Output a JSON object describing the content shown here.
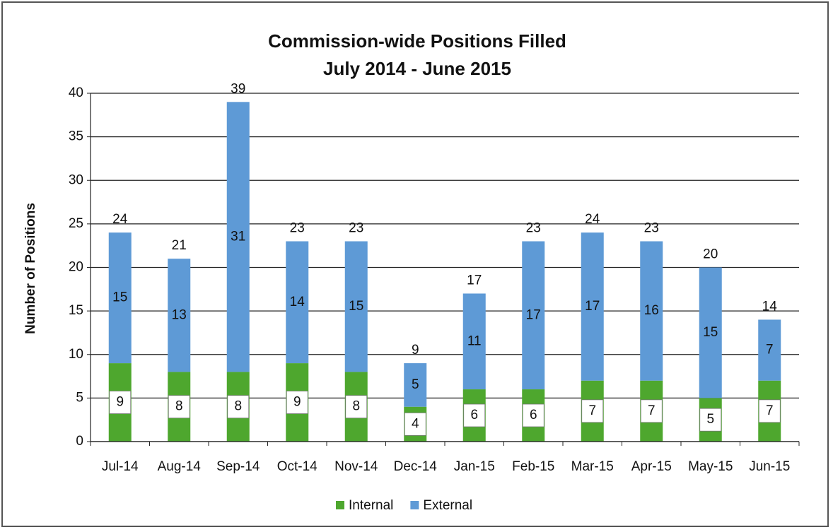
{
  "chart_data": {
    "type": "stacked_bar",
    "title": "Commission-wide Positions Filled",
    "subtitle": "July 2014 - June 2015",
    "y_label": "Number of Positions",
    "categories": [
      "Jul-14",
      "Aug-14",
      "Sep-14",
      "Oct-14",
      "Nov-14",
      "Dec-14",
      "Jan-15",
      "Feb-15",
      "Mar-15",
      "Apr-15",
      "May-15",
      "Jun-15"
    ],
    "series": [
      {
        "name": "Internal",
        "color": "#4ea72e",
        "values": [
          9,
          8,
          8,
          9,
          8,
          4,
          6,
          6,
          7,
          7,
          5,
          7
        ]
      },
      {
        "name": "External",
        "color": "#5e9ad6",
        "values": [
          15,
          13,
          31,
          14,
          15,
          5,
          11,
          17,
          17,
          16,
          15,
          7
        ]
      }
    ],
    "totals": [
      24,
      21,
      39,
      23,
      23,
      9,
      17,
      23,
      24,
      23,
      20,
      14
    ],
    "ylim": [
      0,
      40
    ],
    "yticks": [
      0,
      5,
      10,
      15,
      20,
      25,
      30,
      35,
      40
    ],
    "grid": true,
    "legend": "bottom"
  }
}
